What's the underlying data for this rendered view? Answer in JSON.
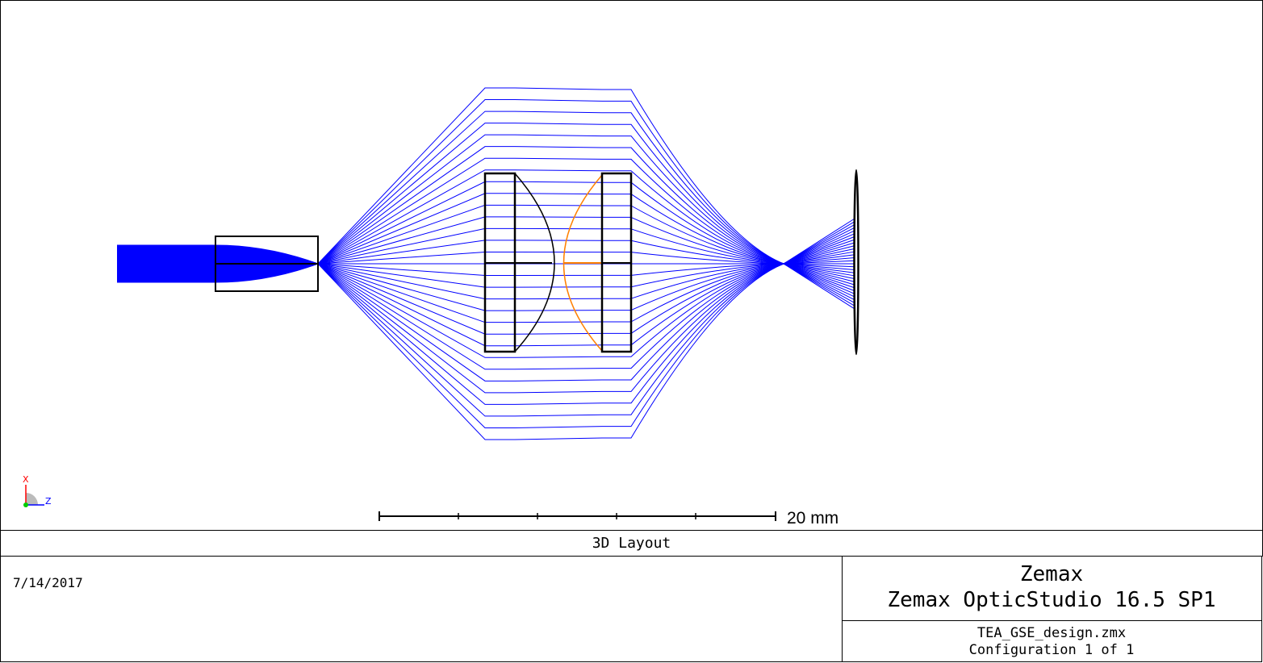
{
  "plot": {
    "scale_label": "20 mm",
    "axis_x_label": "X",
    "axis_z_label": "Z",
    "ray_color": "#0000ff",
    "optics_color": "#000000",
    "highlight_color": "#ff8000"
  },
  "footer": {
    "title": "3D Layout",
    "date": "7/14/2017",
    "company": "Zemax",
    "product": "Zemax OpticStudio 16.5 SP1",
    "file": "TEA_GSE_design.zmx",
    "configuration": "Configuration 1 of 1"
  }
}
